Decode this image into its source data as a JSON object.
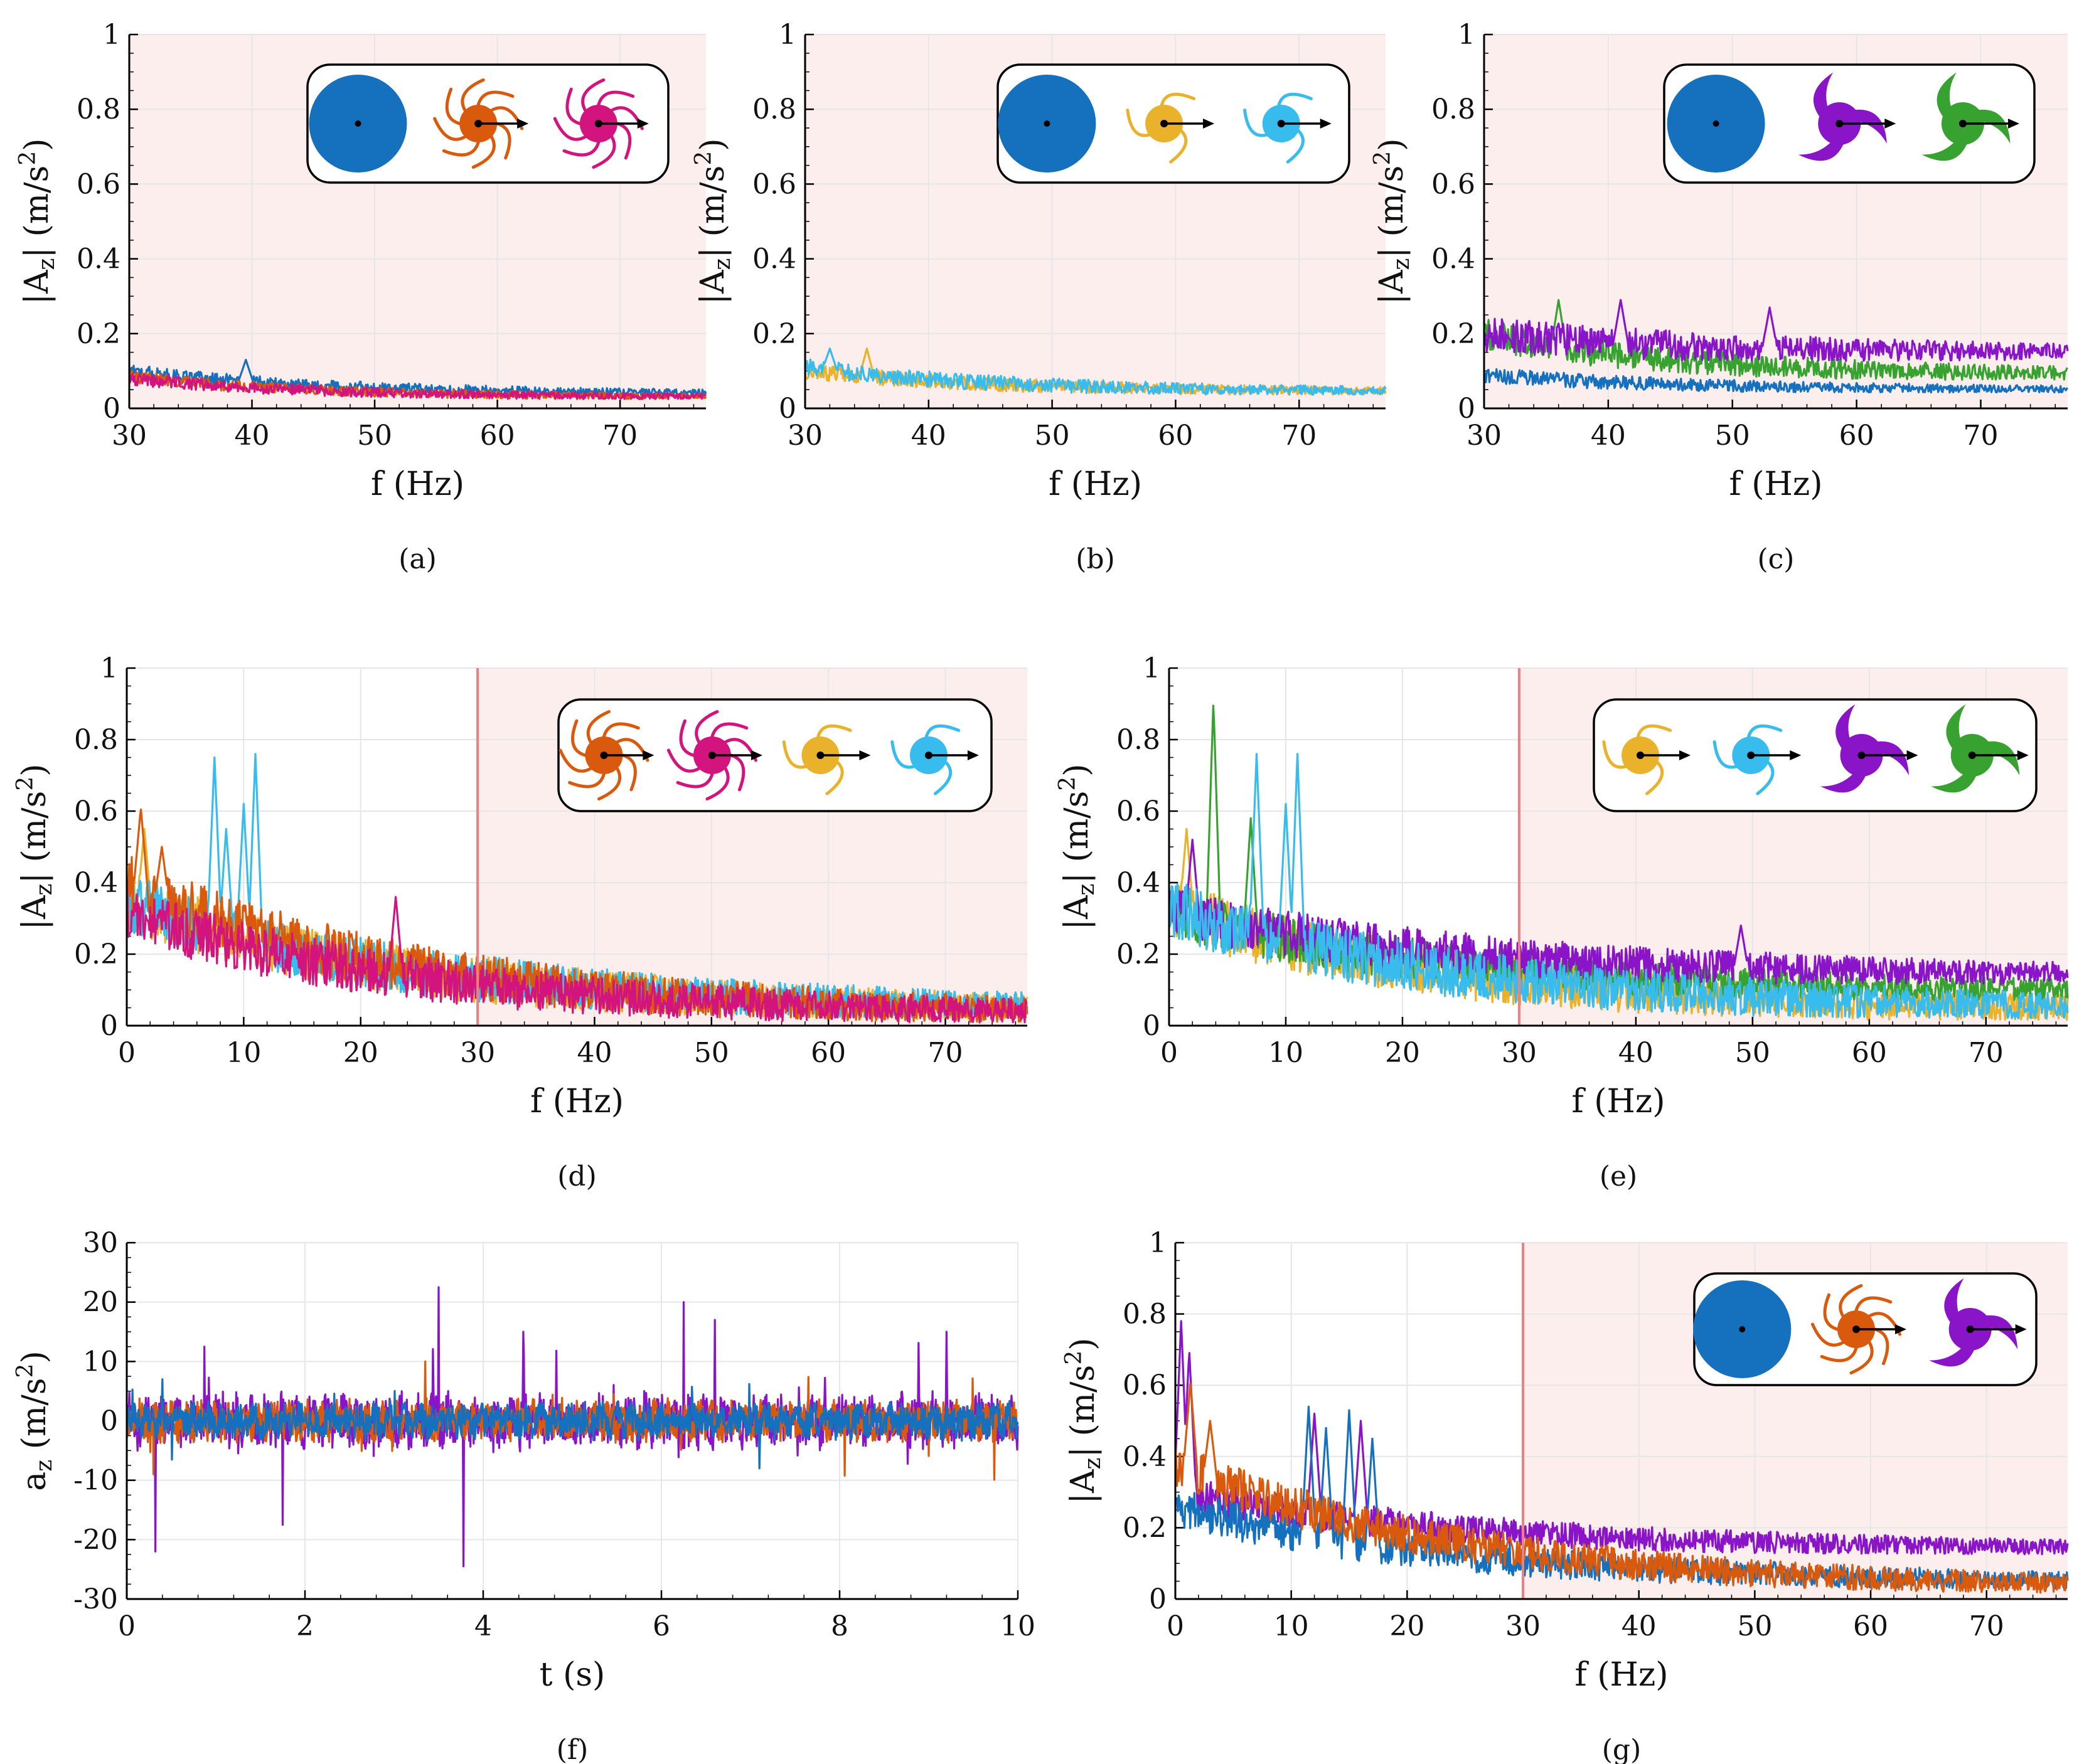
{
  "colors": {
    "blue": "#1570be",
    "orange": "#d95a0c",
    "magenta": "#d4147e",
    "yellow": "#eab22b",
    "lightblue": "#37bced",
    "purple": "#8a14c8",
    "green": "#37a22f",
    "shade": "#fdeeee",
    "cutoff": "#f08080",
    "grid": "#e6e6e6"
  },
  "chart_data": [
    {
      "id": "a",
      "panel_label": "(a)",
      "type": "line",
      "xlabel": "f (Hz)",
      "ylabel": "|A_z| (m/s^2)",
      "xlim": [
        30,
        77
      ],
      "ylim": [
        0,
        1
      ],
      "xticks": [
        "30",
        "40",
        "50",
        "60",
        "70"
      ],
      "yticks": [
        "0",
        "0.2",
        "0.4",
        "0.6",
        "0.8",
        "1"
      ],
      "shaded_from": 30,
      "cutoff_line": null,
      "legend_icons": [
        "disk",
        "orange-spiral-rotor",
        "magenta-spiral-rotor"
      ],
      "legend_position": "top-right",
      "series": [
        {
          "color": "blue",
          "start": 0.1,
          "end": 0.04,
          "noise": 0.014,
          "peaks": [
            [
              39.5,
              0.13
            ]
          ]
        },
        {
          "color": "orange",
          "start": 0.085,
          "end": 0.03,
          "noise": 0.012,
          "peaks": []
        },
        {
          "color": "magenta",
          "start": 0.08,
          "end": 0.03,
          "noise": 0.012,
          "peaks": []
        }
      ]
    },
    {
      "id": "b",
      "panel_label": "(b)",
      "type": "line",
      "xlabel": "f (Hz)",
      "ylabel": "|A_z| (m/s^2)",
      "xlim": [
        30,
        77
      ],
      "ylim": [
        0,
        1
      ],
      "xticks": [
        "30",
        "40",
        "50",
        "60",
        "70"
      ],
      "yticks": [
        "0",
        "0.2",
        "0.4",
        "0.6",
        "0.8",
        "1"
      ],
      "shaded_from": 30,
      "cutoff_line": null,
      "legend_icons": [
        "disk",
        "yellow-three-arm-rotor",
        "lightblue-three-arm-rotor"
      ],
      "legend_position": "top-right",
      "series": [
        {
          "color": "yellow",
          "start": 0.1,
          "end": 0.045,
          "noise": 0.016,
          "peaks": [
            [
              35,
              0.16
            ]
          ]
        },
        {
          "color": "lightblue",
          "start": 0.11,
          "end": 0.045,
          "noise": 0.018,
          "peaks": [
            [
              32,
              0.16
            ]
          ]
        }
      ]
    },
    {
      "id": "c",
      "panel_label": "(c)",
      "type": "line",
      "xlabel": "f (Hz)",
      "ylabel": "|A_z| (m/s^2)",
      "xlim": [
        30,
        77
      ],
      "ylim": [
        0,
        1
      ],
      "xticks": [
        "30",
        "40",
        "50",
        "60",
        "70"
      ],
      "yticks": [
        "0",
        "0.2",
        "0.4",
        "0.6",
        "0.8",
        "1"
      ],
      "shaded_from": 30,
      "cutoff_line": null,
      "legend_icons": [
        "disk",
        "purple-curved-blade-rotor",
        "green-curved-blade-rotor"
      ],
      "legend_position": "top-right",
      "series": [
        {
          "color": "blue",
          "start": 0.09,
          "end": 0.05,
          "noise": 0.015,
          "peaks": []
        },
        {
          "color": "green",
          "start": 0.2,
          "end": 0.09,
          "noise": 0.03,
          "peaks": [
            [
              36,
              0.29
            ]
          ]
        },
        {
          "color": "purple",
          "start": 0.2,
          "end": 0.15,
          "noise": 0.035,
          "peaks": [
            [
              41,
              0.29
            ],
            [
              53,
              0.27
            ]
          ]
        }
      ]
    },
    {
      "id": "d",
      "panel_label": "(d)",
      "type": "line",
      "xlabel": "f (Hz)",
      "ylabel": "|A_z| (m/s^2)",
      "xlim": [
        0,
        77
      ],
      "ylim": [
        0,
        1
      ],
      "xticks": [
        "0",
        "10",
        "20",
        "30",
        "40",
        "50",
        "60",
        "70"
      ],
      "yticks": [
        "0",
        "0.2",
        "0.4",
        "0.6",
        "0.8",
        "1"
      ],
      "shaded_from": 30,
      "cutoff_line": 30,
      "legend_icons": [
        "orange-spiral-rotor",
        "magenta-spiral-rotor",
        "yellow-three-arm-rotor",
        "lightblue-three-arm-rotor"
      ],
      "legend_position": "top-right",
      "series": [
        {
          "color": "yellow",
          "start": 0.35,
          "end": 0.04,
          "noise": 0.06,
          "peaks": [
            [
              1.5,
              0.55
            ]
          ]
        },
        {
          "color": "lightblue",
          "start": 0.35,
          "end": 0.045,
          "noise": 0.06,
          "peaks": [
            [
              7.5,
              0.75
            ],
            [
              11,
              0.76
            ],
            [
              10,
              0.62
            ],
            [
              8.5,
              0.55
            ]
          ]
        },
        {
          "color": "orange",
          "start": 0.4,
          "end": 0.03,
          "noise": 0.06,
          "peaks": [
            [
              1.2,
              0.61
            ],
            [
              3,
              0.5
            ]
          ]
        },
        {
          "color": "magenta",
          "start": 0.32,
          "end": 0.03,
          "noise": 0.055,
          "peaks": [
            [
              23,
              0.36
            ]
          ]
        }
      ]
    },
    {
      "id": "e",
      "panel_label": "(e)",
      "type": "line",
      "xlabel": "f (Hz)",
      "ylabel": "|A_z| (m/s^2)",
      "xlim": [
        0,
        77
      ],
      "ylim": [
        0,
        1
      ],
      "xticks": [
        "0",
        "10",
        "20",
        "30",
        "40",
        "50",
        "60",
        "70"
      ],
      "yticks": [
        "0",
        "0.2",
        "0.4",
        "0.6",
        "0.8",
        "1"
      ],
      "shaded_from": 30,
      "cutoff_line": 30,
      "legend_icons": [
        "yellow-three-arm-rotor",
        "lightblue-three-arm-rotor",
        "purple-curved-blade-rotor",
        "green-curved-blade-rotor"
      ],
      "legend_position": "top-right",
      "series": [
        {
          "color": "yellow",
          "start": 0.33,
          "end": 0.04,
          "noise": 0.06,
          "peaks": [
            [
              1.5,
              0.55
            ]
          ]
        },
        {
          "color": "green",
          "start": 0.32,
          "end": 0.09,
          "noise": 0.05,
          "peaks": [
            [
              3.8,
              0.91
            ],
            [
              7,
              0.58
            ]
          ]
        },
        {
          "color": "purple",
          "start": 0.32,
          "end": 0.14,
          "noise": 0.05,
          "peaks": [
            [
              2,
              0.52
            ],
            [
              49,
              0.28
            ]
          ]
        },
        {
          "color": "lightblue",
          "start": 0.33,
          "end": 0.045,
          "noise": 0.06,
          "peaks": [
            [
              7.5,
              0.76
            ],
            [
              11,
              0.76
            ],
            [
              10,
              0.62
            ]
          ]
        }
      ]
    },
    {
      "id": "f",
      "panel_label": "(f)",
      "type": "line",
      "xlabel": "t (s)",
      "ylabel": "a_z (m/s^2)",
      "xlim": [
        0,
        10
      ],
      "ylim": [
        -30,
        30
      ],
      "xticks": [
        "0",
        "2",
        "4",
        "6",
        "8",
        "10"
      ],
      "yticks": [
        "-30",
        "-20",
        "-10",
        "0",
        "10",
        "20",
        "30"
      ],
      "shaded_from": null,
      "cutoff_line": null,
      "legend_icons": [],
      "series": [
        {
          "color": "purple",
          "amp": 4.0,
          "spikes": [
            [
              3.5,
              22.5
            ],
            [
              3.78,
              -24.5
            ],
            [
              0.32,
              -22
            ],
            [
              6.25,
              20
            ],
            [
              6.6,
              17
            ],
            [
              9.2,
              15
            ],
            [
              0.87,
              12.5
            ],
            [
              4.45,
              15
            ],
            [
              1.75,
              -17.5
            ]
          ]
        },
        {
          "color": "orange",
          "amp": 3.0,
          "spikes": [
            [
              3.35,
              10
            ],
            [
              0.3,
              -9
            ]
          ]
        },
        {
          "color": "blue",
          "amp": 2.6,
          "spikes": [
            [
              0.4,
              7
            ],
            [
              7.1,
              -8
            ]
          ]
        }
      ]
    },
    {
      "id": "g",
      "panel_label": "(g)",
      "type": "line",
      "xlabel": "f (Hz)",
      "ylabel": "|A_z| (m/s^2)",
      "xlim": [
        0,
        77
      ],
      "ylim": [
        0,
        1
      ],
      "xticks": [
        "0",
        "10",
        "20",
        "30",
        "40",
        "50",
        "60",
        "70"
      ],
      "yticks": [
        "0",
        "0.2",
        "0.4",
        "0.6",
        "0.8",
        "1"
      ],
      "shaded_from": 30,
      "cutoff_line": 30,
      "legend_icons": [
        "disk",
        "orange-spiral-rotor",
        "purple-curved-blade-rotor"
      ],
      "legend_position": "top-right",
      "series": [
        {
          "color": "purple",
          "start": 0.3,
          "end": 0.14,
          "noise": 0.035,
          "peaks": [
            [
              0.5,
              0.78
            ],
            [
              12,
              0.52
            ],
            [
              16,
              0.5
            ],
            [
              1.2,
              0.7
            ]
          ]
        },
        {
          "color": "blue",
          "start": 0.26,
          "end": 0.045,
          "noise": 0.04,
          "peaks": [
            [
              11.5,
              0.54
            ],
            [
              15,
              0.53
            ],
            [
              13,
              0.48
            ],
            [
              17,
              0.45
            ]
          ]
        },
        {
          "color": "orange",
          "start": 0.38,
          "end": 0.03,
          "noise": 0.045,
          "peaks": [
            [
              1.3,
              0.61
            ],
            [
              3,
              0.5
            ]
          ]
        }
      ]
    }
  ]
}
